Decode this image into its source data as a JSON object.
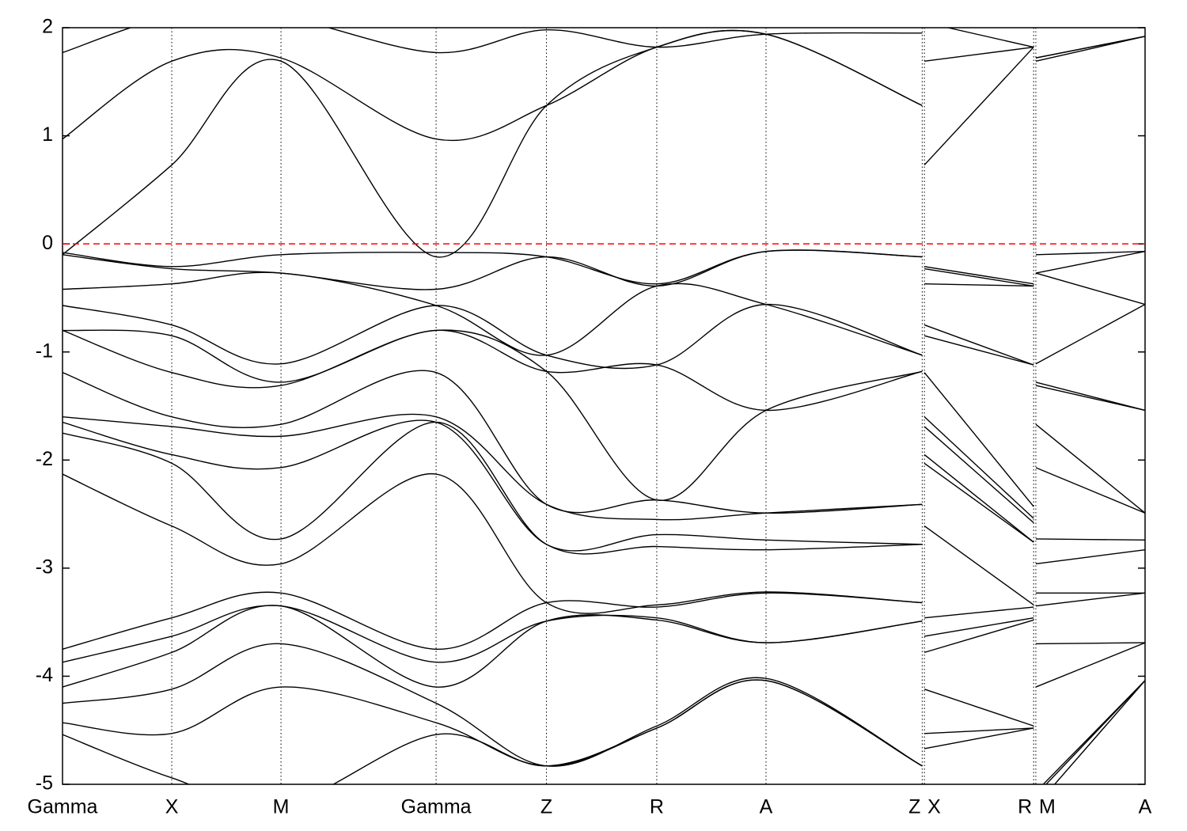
{
  "chart_data": {
    "type": "line",
    "x": [
      0,
      1,
      2,
      3.42,
      4.43,
      5.44,
      6.44,
      7.87,
      7.88,
      7.89,
      8.89,
      8.9,
      8.91,
      9.91
    ],
    "xlim": [
      0,
      9.91
    ],
    "xticks": [
      {
        "value": 0,
        "label": "Gamma"
      },
      {
        "value": 1,
        "label": "X"
      },
      {
        "value": 2,
        "label": "M"
      },
      {
        "value": 3.42,
        "label": "Gamma"
      },
      {
        "value": 4.43,
        "label": "Z"
      },
      {
        "value": 5.44,
        "label": "R"
      },
      {
        "value": 6.44,
        "label": "A"
      },
      {
        "value": 7.87,
        "label": "Z"
      },
      {
        "value": 7.89,
        "label": "X"
      },
      {
        "value": 8.89,
        "label": "R"
      },
      {
        "value": 8.91,
        "label": "M"
      },
      {
        "value": 9.91,
        "label": "A"
      }
    ],
    "ylim": [
      -5,
      2
    ],
    "yticks": [
      -5,
      -4,
      -3,
      -2,
      -1,
      0,
      1,
      2
    ],
    "color": "#000000",
    "grid": true,
    "hlines": [
      {
        "value": 0,
        "color": "#ff0000"
      }
    ],
    "series": [
      {
        "values": [
          1.77,
          2.1,
          2.1,
          1.77,
          1.98,
          1.82,
          1.94,
          1.95,
          null,
          2.05,
          1.82,
          null,
          1.72,
          1.92
        ]
      },
      {
        "values": [
          0.97,
          1.69,
          1.72,
          0.97,
          1.28,
          1.82,
          1.94,
          1.28,
          null,
          1.69,
          1.82,
          null,
          1.72,
          1.92
        ]
      },
      {
        "values": [
          -0.1,
          0.73,
          1.69,
          -0.12,
          1.28,
          1.82,
          1.94,
          1.28,
          null,
          0.73,
          1.82,
          null,
          1.69,
          1.92
        ]
      },
      {
        "values": [
          -0.08,
          -0.21,
          -0.1,
          -0.08,
          -0.12,
          -0.37,
          -0.07,
          -0.12,
          null,
          -0.21,
          -0.37,
          null,
          -0.1,
          -0.07
        ]
      },
      {
        "values": [
          -0.1,
          -0.23,
          -0.27,
          -0.42,
          -0.12,
          -0.39,
          -0.07,
          -0.12,
          null,
          -0.23,
          -0.39,
          null,
          -0.27,
          -0.07
        ]
      },
      {
        "values": [
          -0.42,
          -0.37,
          -0.27,
          -0.57,
          -1.03,
          -0.39,
          -0.56,
          -1.03,
          null,
          -0.37,
          -0.39,
          null,
          -0.27,
          -0.56
        ]
      },
      {
        "values": [
          -0.57,
          -0.75,
          -1.11,
          -0.57,
          -1.03,
          -1.12,
          -0.56,
          -1.03,
          null,
          -0.75,
          -1.12,
          null,
          -1.11,
          -0.56
        ]
      },
      {
        "values": [
          -0.8,
          -0.85,
          -1.28,
          -0.8,
          -1.18,
          -1.12,
          -1.54,
          -1.18,
          null,
          -0.85,
          -1.12,
          null,
          -1.28,
          -1.54
        ]
      },
      {
        "values": [
          -0.8,
          -1.19,
          -1.31,
          -0.8,
          -1.18,
          -2.37,
          -1.54,
          -1.18,
          null,
          -1.19,
          -2.43,
          null,
          -1.31,
          -1.54
        ]
      },
      {
        "values": [
          -1.19,
          -1.6,
          -1.67,
          -1.19,
          -2.41,
          -2.37,
          -2.49,
          -2.41,
          null,
          -1.6,
          -2.54,
          null,
          -1.67,
          -2.49
        ]
      },
      {
        "values": [
          -1.6,
          -1.69,
          -1.78,
          -1.6,
          -2.41,
          -2.55,
          -2.49,
          -2.41,
          null,
          -1.69,
          -2.58,
          null,
          -2.07,
          -2.49
        ]
      },
      {
        "values": [
          -1.65,
          -1.95,
          -2.07,
          -1.65,
          -2.78,
          -2.69,
          -2.74,
          -2.78,
          null,
          -1.95,
          -2.76,
          null,
          -2.73,
          -2.74
        ]
      },
      {
        "values": [
          -1.75,
          -2.03,
          -2.73,
          -1.65,
          -2.78,
          -2.8,
          -2.83,
          -2.78,
          null,
          -2.03,
          -2.76,
          null,
          -2.96,
          -2.83
        ]
      },
      {
        "values": [
          -2.13,
          -2.61,
          -2.96,
          -2.13,
          -3.32,
          -3.34,
          -3.22,
          -3.32,
          null,
          -2.61,
          -3.34,
          null,
          -3.23,
          -3.23
        ]
      },
      {
        "values": [
          -3.75,
          -3.46,
          -3.23,
          -3.75,
          -3.32,
          -3.36,
          -3.23,
          -3.32,
          null,
          -3.46,
          -3.36,
          null,
          -3.35,
          -3.23
        ]
      },
      {
        "values": [
          -3.87,
          -3.63,
          -3.35,
          -3.87,
          -3.49,
          -3.46,
          -3.69,
          -3.49,
          null,
          -3.63,
          -3.46,
          null,
          -3.7,
          -3.69
        ]
      },
      {
        "values": [
          -4.1,
          -3.78,
          -3.35,
          -4.1,
          -3.49,
          -3.48,
          -3.69,
          -3.49,
          null,
          -3.78,
          -3.48,
          null,
          -4.1,
          -3.69
        ]
      },
      {
        "values": [
          -4.25,
          -4.12,
          -3.7,
          -4.25,
          -4.83,
          -4.46,
          -4.02,
          -4.83,
          null,
          -4.12,
          -4.46,
          null,
          -5.07,
          -4.04
        ]
      },
      {
        "values": [
          -4.43,
          -4.53,
          -4.1,
          -4.43,
          -4.83,
          -4.48,
          -4.04,
          -4.83,
          null,
          -4.53,
          -4.48,
          null,
          -5.1,
          -4.04
        ]
      },
      {
        "values": [
          -4.54,
          -4.94,
          -5.2,
          -4.54,
          -4.83,
          -4.48,
          -4.04,
          -4.83,
          null,
          -4.67,
          -4.48,
          null,
          -5.2,
          -4.04
        ]
      }
    ]
  }
}
